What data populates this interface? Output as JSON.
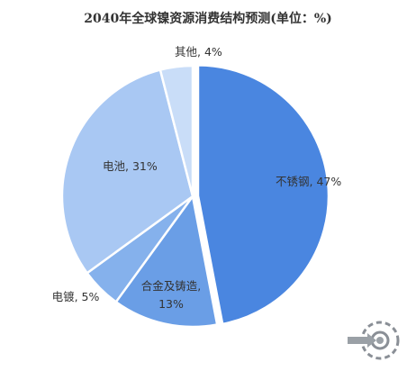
{
  "chart_data": {
    "type": "pie",
    "title": "2040年全球镍资源消费结构预测(单位：%)",
    "unit": "%",
    "slices": [
      {
        "label": "不锈钢",
        "value": 47,
        "label_text": "不锈钢, 47%",
        "color": "#4a86e0"
      },
      {
        "label": "合金及铸造",
        "value": 13,
        "label_text": "合金及铸造, 13%",
        "color": "#6a9ee6"
      },
      {
        "label": "电镀",
        "value": 5,
        "label_text": "电镀, 5%",
        "color": "#85b1ec"
      },
      {
        "label": "电池",
        "value": 31,
        "label_text": "电池, 31%",
        "color": "#a9c8f3"
      },
      {
        "label": "其他",
        "value": 4,
        "label_text": "其他, 4%",
        "color": "#c9ddf8"
      }
    ]
  }
}
